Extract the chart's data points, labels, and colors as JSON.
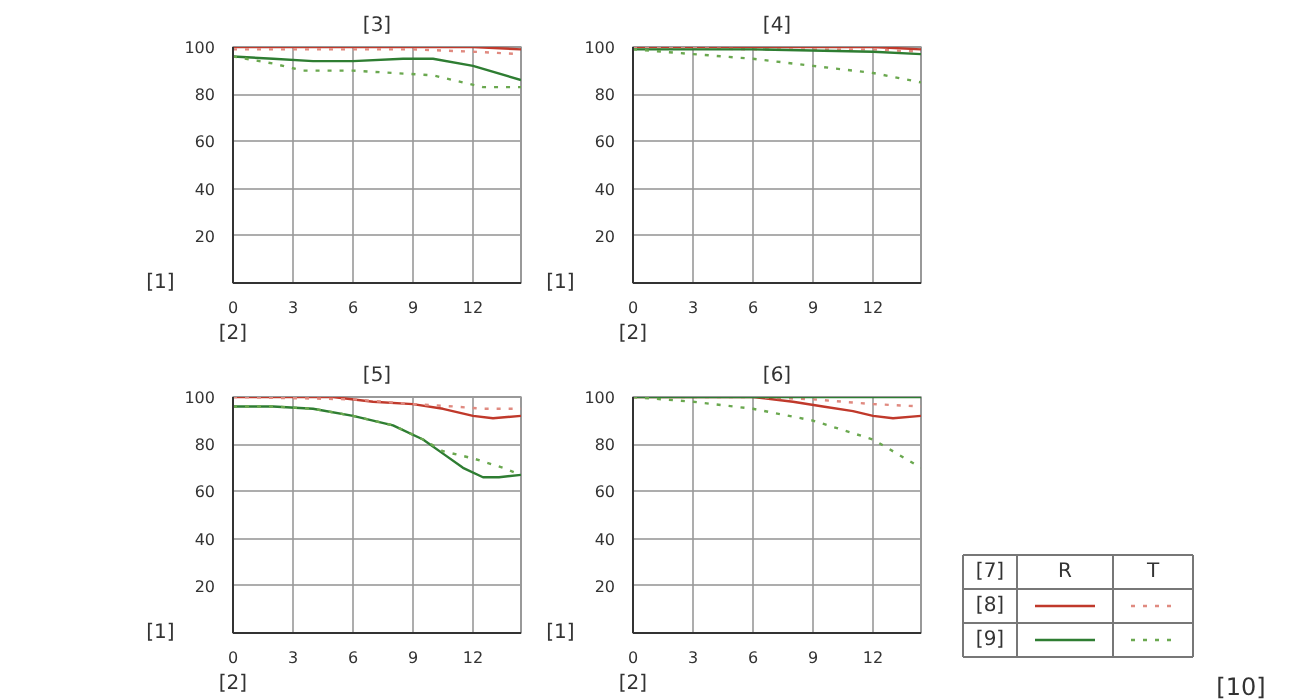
{
  "chart_data": [
    {
      "type": "line",
      "title": "[3]",
      "xlabel": "[2]",
      "ylabel": "[1]",
      "xlim": [
        0,
        14.4
      ],
      "ylim": [
        0,
        100
      ],
      "xticks": [
        0,
        3,
        6,
        9,
        12
      ],
      "yticks": [
        20,
        40,
        60,
        80,
        100
      ],
      "grid": true,
      "series": [
        {
          "color": "#c0392b",
          "line_style": "solid",
          "x": [
            0,
            3,
            6,
            9,
            12,
            14.4
          ],
          "values": [
            100,
            100,
            100,
            100,
            100,
            99
          ]
        },
        {
          "color": "#e08a80",
          "line_style": "dotted",
          "x": [
            0,
            3,
            6,
            9,
            12,
            14.4
          ],
          "values": [
            99,
            99,
            99,
            99,
            98,
            97
          ]
        },
        {
          "color": "#2e7d32",
          "line_style": "solid",
          "x": [
            0,
            2,
            4,
            6,
            8.5,
            10,
            12,
            14.4
          ],
          "values": [
            96,
            95,
            94,
            94,
            95,
            95,
            92,
            86
          ]
        },
        {
          "color": "#6aa84f",
          "line_style": "dotted",
          "x": [
            0,
            2,
            3.5,
            4.5,
            6,
            8,
            10,
            11.5,
            12.5,
            14.4
          ],
          "values": [
            96,
            93,
            90,
            90,
            90,
            89,
            88,
            85,
            83,
            83
          ]
        }
      ]
    },
    {
      "type": "line",
      "title": "[4]",
      "xlabel": "[2]",
      "ylabel": "[1]",
      "xlim": [
        0,
        14.4
      ],
      "ylim": [
        0,
        100
      ],
      "xticks": [
        0,
        3,
        6,
        9,
        12
      ],
      "yticks": [
        20,
        40,
        60,
        80,
        100
      ],
      "grid": true,
      "series": [
        {
          "color": "#c0392b",
          "line_style": "solid",
          "x": [
            0,
            6,
            12,
            14.4
          ],
          "values": [
            100,
            100,
            100,
            99
          ]
        },
        {
          "color": "#e08a80",
          "line_style": "dotted",
          "x": [
            0,
            6,
            12,
            14.4
          ],
          "values": [
            100,
            99,
            99,
            98
          ]
        },
        {
          "color": "#2e7d32",
          "line_style": "solid",
          "x": [
            0,
            6,
            12,
            14.4
          ],
          "values": [
            99,
            99,
            98,
            97
          ]
        },
        {
          "color": "#6aa84f",
          "line_style": "dotted",
          "x": [
            0,
            3,
            6,
            9,
            12,
            14.4
          ],
          "values": [
            99,
            97,
            95,
            92,
            89,
            85
          ]
        }
      ]
    },
    {
      "type": "line",
      "title": "[5]",
      "xlabel": "[2]",
      "ylabel": "[1]",
      "xlim": [
        0,
        14.4
      ],
      "ylim": [
        0,
        100
      ],
      "xticks": [
        0,
        3,
        6,
        9,
        12
      ],
      "yticks": [
        20,
        40,
        60,
        80,
        100
      ],
      "grid": true,
      "series": [
        {
          "color": "#c0392b",
          "line_style": "solid",
          "x": [
            0,
            5,
            7,
            9,
            10.5,
            12,
            13,
            14.4
          ],
          "values": [
            100,
            100,
            98,
            97,
            95,
            92,
            91,
            92
          ]
        },
        {
          "color": "#e08a80",
          "line_style": "dotted",
          "x": [
            0,
            6,
            9,
            11,
            12.5,
            14.4
          ],
          "values": [
            100,
            99,
            97,
            96,
            95,
            95
          ]
        },
        {
          "color": "#2e7d32",
          "line_style": "solid",
          "x": [
            0,
            2,
            4,
            6,
            8,
            9.5,
            10.5,
            11.5,
            12.5,
            13.3,
            14.4
          ],
          "values": [
            96,
            96,
            95,
            92,
            88,
            82,
            76,
            70,
            66,
            66,
            67
          ]
        },
        {
          "color": "#6aa84f",
          "line_style": "dotted",
          "x": [
            0,
            2,
            4,
            6,
            8,
            9.5,
            10.5,
            12,
            13.5,
            14.4
          ],
          "values": [
            96,
            96,
            95,
            92,
            88,
            82,
            77,
            74,
            70,
            67
          ]
        }
      ]
    },
    {
      "type": "line",
      "title": "[6]",
      "xlabel": "[2]",
      "ylabel": "[1]",
      "xlim": [
        0,
        14.4
      ],
      "ylim": [
        0,
        100
      ],
      "xticks": [
        0,
        3,
        6,
        9,
        12
      ],
      "yticks": [
        20,
        40,
        60,
        80,
        100
      ],
      "grid": true,
      "series": [
        {
          "color": "#c0392b",
          "line_style": "solid",
          "x": [
            0,
            6,
            8,
            9.5,
            11,
            12,
            13,
            14.4
          ],
          "values": [
            100,
            100,
            98,
            96,
            94,
            92,
            91,
            92
          ]
        },
        {
          "color": "#e08a80",
          "line_style": "dotted",
          "x": [
            0,
            6,
            9,
            12,
            14.4
          ],
          "values": [
            100,
            100,
            99,
            97,
            96
          ]
        },
        {
          "color": "#2e7d32",
          "line_style": "solid",
          "x": [
            0,
            6,
            12,
            14.4
          ],
          "values": [
            100,
            100,
            100,
            100
          ]
        },
        {
          "color": "#6aa84f",
          "line_style": "dotted",
          "x": [
            0,
            3,
            6,
            9,
            12,
            14.4
          ],
          "values": [
            100,
            98,
            95,
            90,
            82,
            70
          ]
        }
      ]
    },
    {
      "type": "other",
      "annotations": [
        "[7]",
        "R",
        "T",
        "[8]",
        "[9]",
        "[10]"
      ]
    }
  ]
}
